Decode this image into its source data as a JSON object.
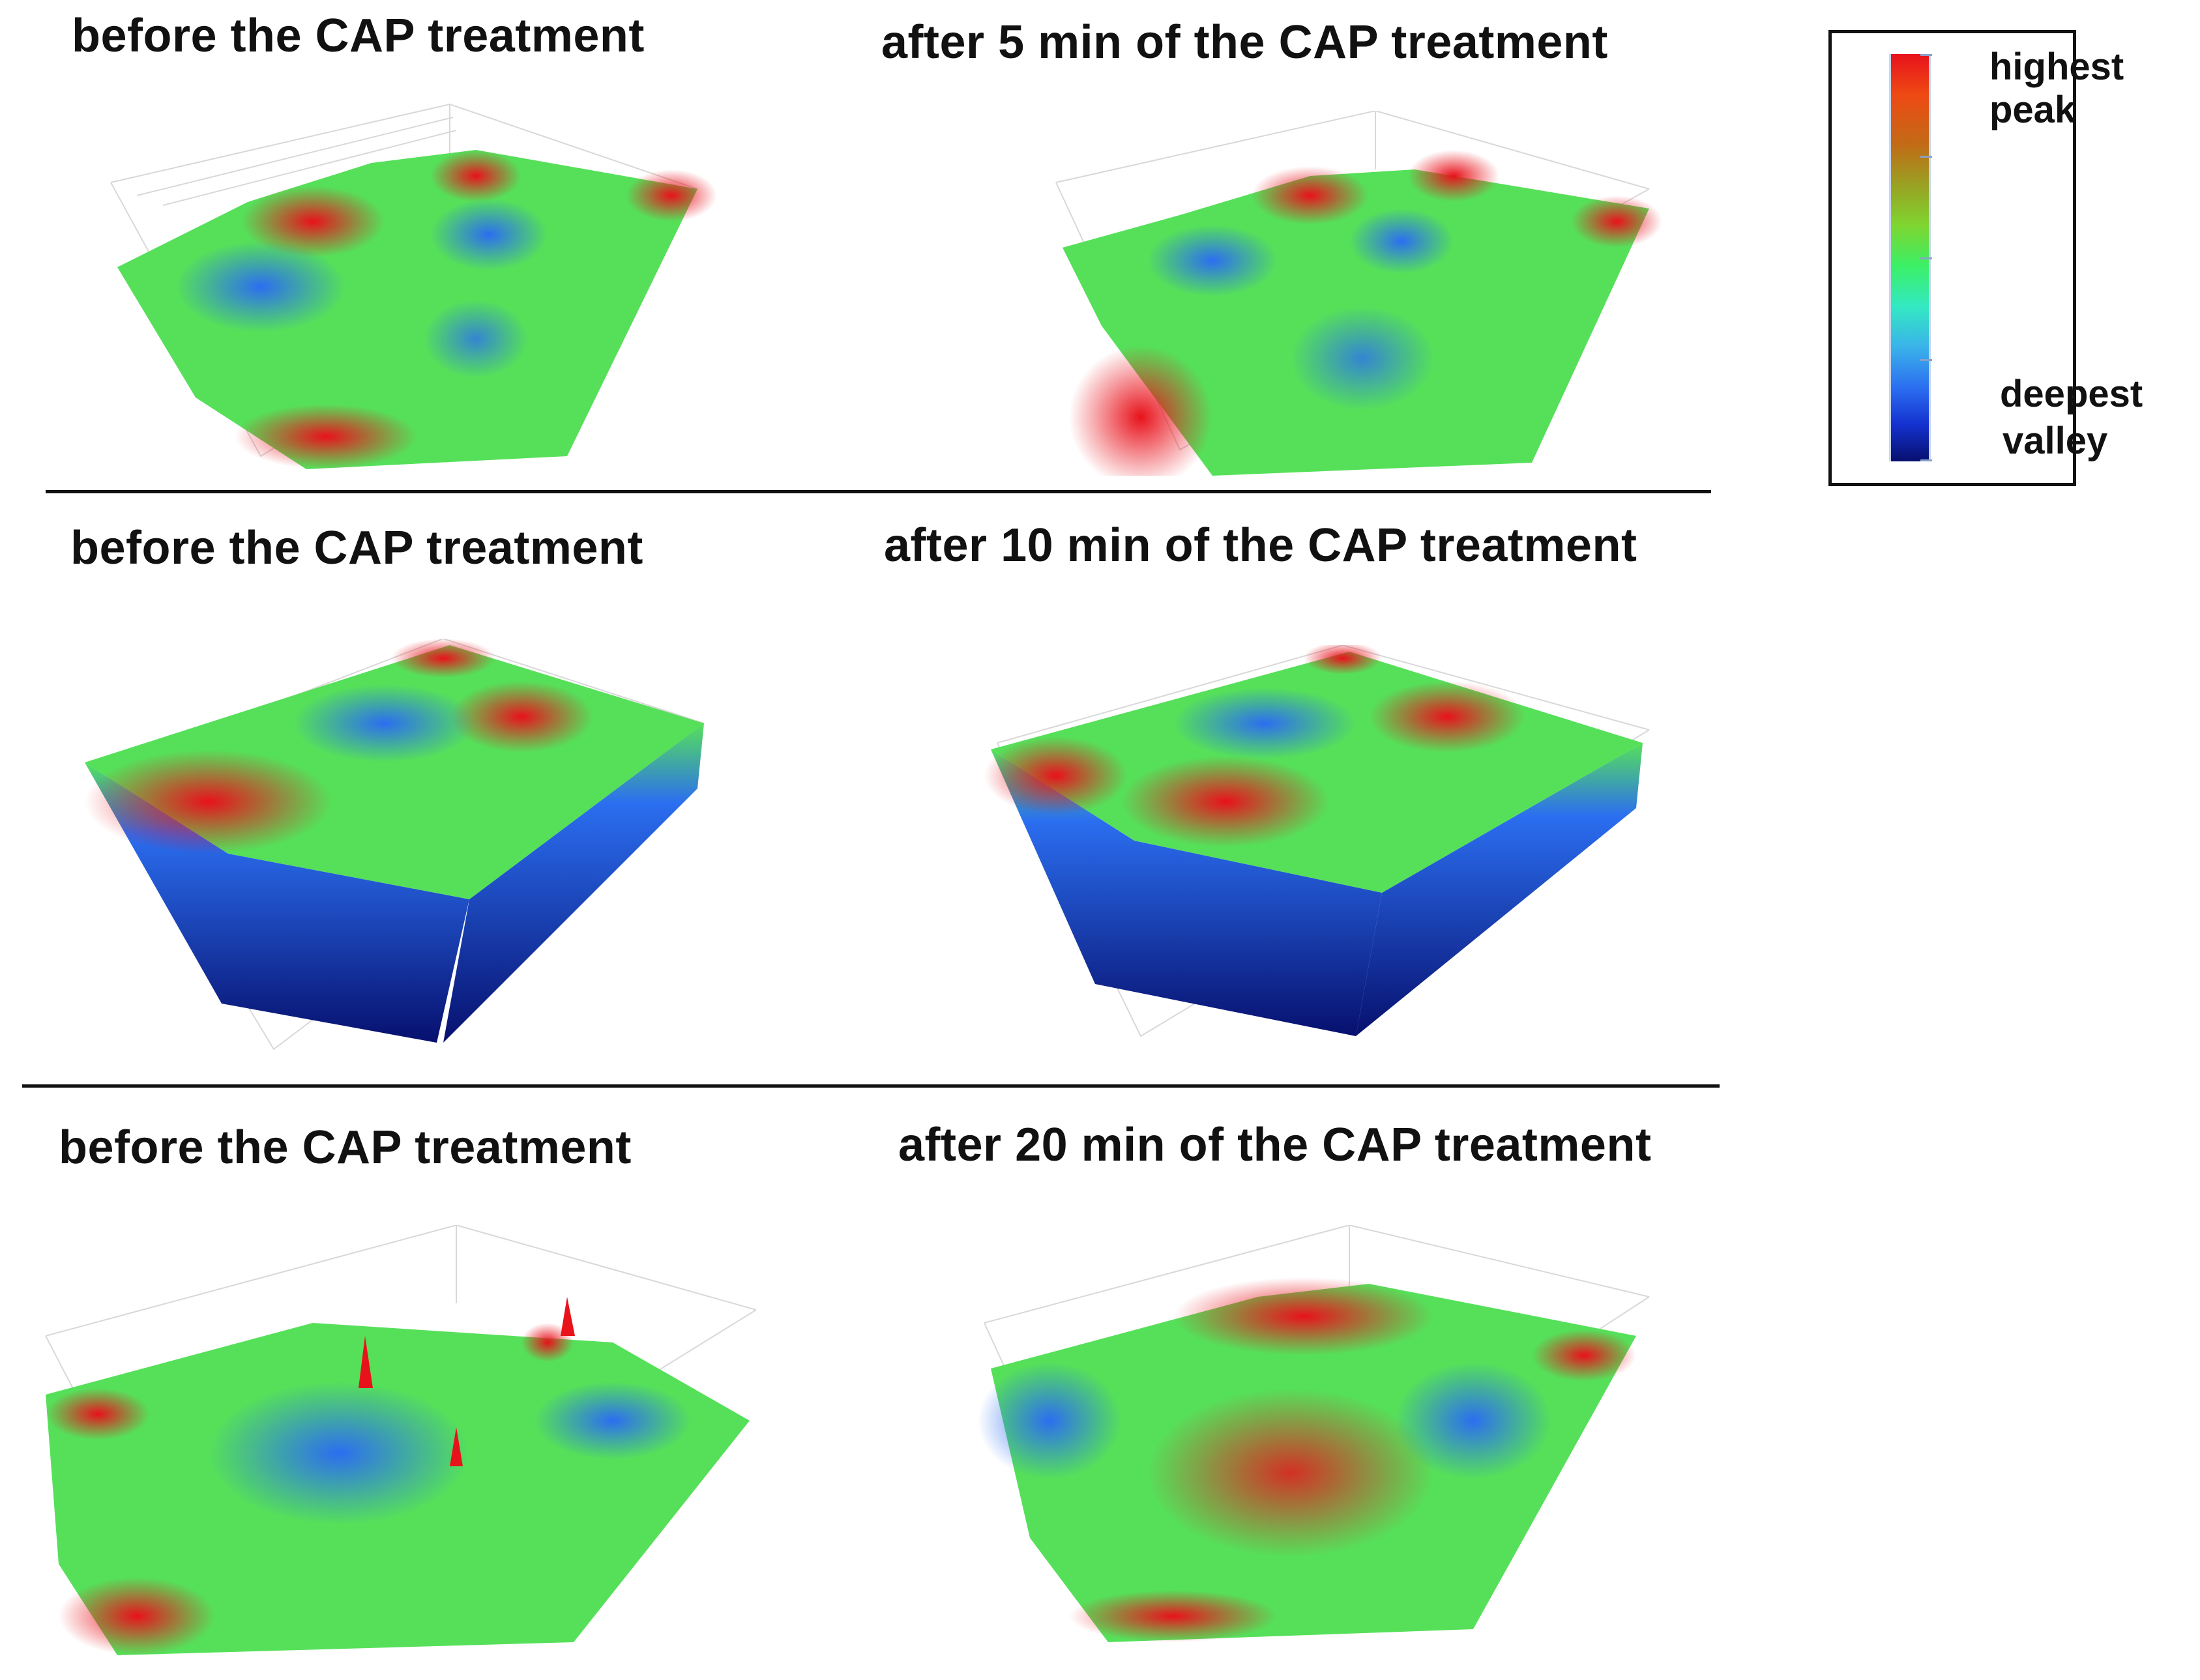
{
  "figure": {
    "rows": [
      {
        "before_title": "before the CAP treatment",
        "after_title": "after 5 min of the CAP treatment"
      },
      {
        "before_title": "before the CAP treatment",
        "after_title": "after 10 min of the CAP treatment"
      },
      {
        "before_title": "before the CAP treatment",
        "after_title": "after 20 min of the CAP treatment"
      }
    ],
    "colormap": [
      "#e8121b",
      "#ee4a14",
      "#c26a16",
      "#9aa022",
      "#7fd530",
      "#3bf066",
      "#33e9c2",
      "#3ab2ea",
      "#2b6ef0",
      "#1431cf",
      "#07106e"
    ]
  },
  "legend": {
    "top_label_1": "highest",
    "top_label_2": "peak",
    "bottom_label_1": "deepest",
    "bottom_label_2": "valley"
  }
}
